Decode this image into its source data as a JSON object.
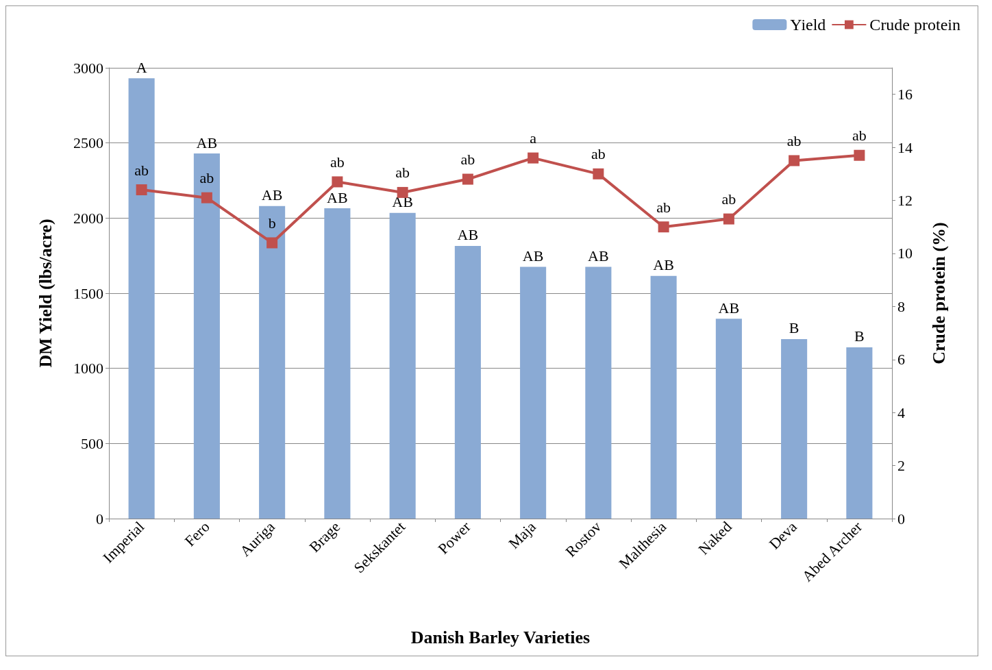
{
  "chart_data": {
    "type": "bar",
    "xlabel": "Danish Barley Varieties",
    "ylabel": "DM Yield (lbs/acre)",
    "y2label": "Crude protein (%)",
    "categories": [
      "Imperial",
      "Fero",
      "Auriga",
      "Brage",
      "Sekskantet",
      "Power",
      "Maja",
      "Rostov",
      "Malthesia",
      "Naked",
      "Deva",
      "Abed Archer"
    ],
    "series": [
      {
        "name": "Yield",
        "color": "#8aaad4",
        "values": [
          2930,
          2430,
          2080,
          2065,
          2035,
          1815,
          1675,
          1675,
          1615,
          1330,
          1195,
          1140
        ],
        "value_labels": [
          "A",
          "AB",
          "AB",
          "AB",
          "AB",
          "AB",
          "AB",
          "AB",
          "AB",
          "AB",
          "B",
          "B"
        ]
      },
      {
        "name": "Crude protein",
        "type": "line",
        "axis": "y2",
        "color": "#c0504d",
        "marker": "square",
        "values": [
          12.4,
          12.1,
          10.4,
          12.7,
          12.3,
          12.8,
          13.6,
          13.0,
          11.0,
          11.3,
          13.5,
          13.7
        ],
        "value_labels": [
          "ab",
          "ab",
          "b",
          "ab",
          "ab",
          "ab",
          "a",
          "ab",
          "ab",
          "ab",
          "ab",
          "ab"
        ]
      }
    ],
    "ylim": [
      0,
      3000
    ],
    "yticks": [
      0,
      500,
      1000,
      1500,
      2000,
      2500,
      3000
    ],
    "y2lim": [
      0,
      17
    ],
    "y2ticks": [
      0,
      2,
      4,
      6,
      8,
      10,
      12,
      14,
      16
    ],
    "grid": "y",
    "legend": "top right"
  }
}
